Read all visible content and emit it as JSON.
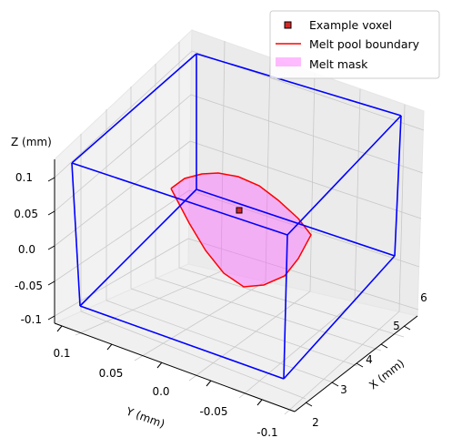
{
  "chart_data": {
    "type": "scatter",
    "projection": "3d",
    "grid": true,
    "title": "",
    "axes": {
      "x": {
        "label": "X (mm)",
        "ticks": [
          "2",
          "3",
          "4",
          "5",
          "6"
        ],
        "range": [
          1.8,
          6.4
        ]
      },
      "y": {
        "label": "Y (mm)",
        "ticks": [
          "0.1",
          "0.05",
          "0.0",
          "-0.05",
          "-0.1"
        ],
        "range": [
          0.12,
          -0.12
        ]
      },
      "z": {
        "label": "Z (mm)",
        "ticks": [
          "0.1",
          "0.05",
          "0.0",
          "-0.05",
          "-0.1"
        ],
        "range": [
          -0.12,
          0.12
        ]
      }
    },
    "domain_box": {
      "color": "#0000ff",
      "x_range": [
        2.0,
        6.0
      ],
      "y_range": [
        0.1,
        -0.1
      ],
      "z_range": [
        -0.1,
        0.1
      ]
    },
    "series": [
      {
        "name": "Example voxel",
        "kind": "scatter",
        "color": "#d62728",
        "edge": "#000000",
        "points": [
          {
            "x": 4.0,
            "y": 0.0,
            "z": 0.0
          }
        ]
      },
      {
        "name": "Melt pool boundary",
        "kind": "line",
        "color": "#ff0000"
      },
      {
        "name": "Melt mask",
        "kind": "fill",
        "color": "#ff55ff",
        "alpha": 0.4
      }
    ],
    "legend": {
      "position": "upper-right"
    }
  }
}
